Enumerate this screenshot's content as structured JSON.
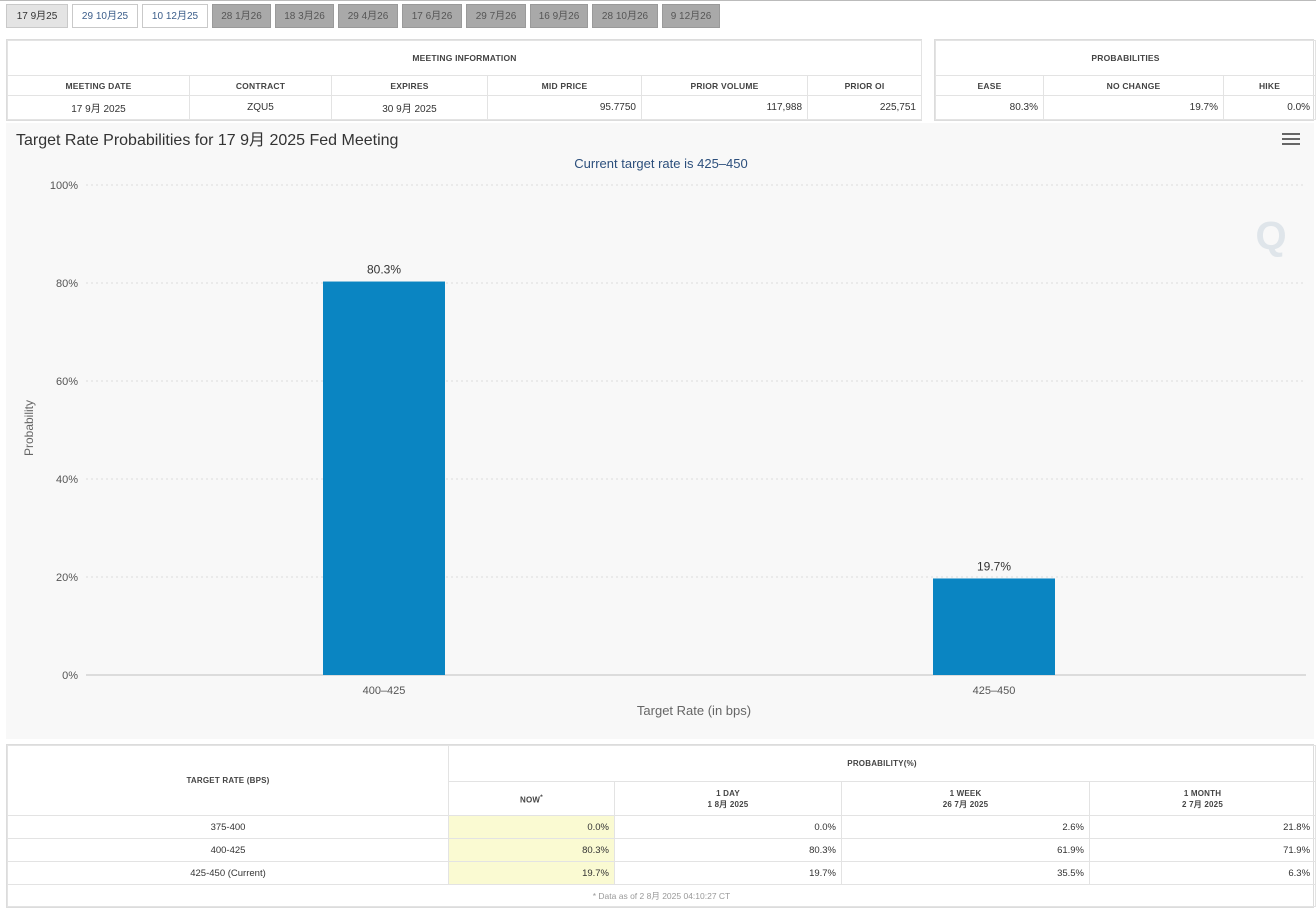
{
  "tabs": [
    {
      "label": "17 9月25",
      "state": "active"
    },
    {
      "label": "29 10月25",
      "state": "plain"
    },
    {
      "label": "10 12月25",
      "state": "plain"
    },
    {
      "label": "28 1月26",
      "state": "future"
    },
    {
      "label": "18 3月26",
      "state": "future"
    },
    {
      "label": "29 4月26",
      "state": "future"
    },
    {
      "label": "17 6月26",
      "state": "future"
    },
    {
      "label": "29 7月26",
      "state": "future"
    },
    {
      "label": "16 9月26",
      "state": "future"
    },
    {
      "label": "28 10月26",
      "state": "future"
    },
    {
      "label": "9 12月26",
      "state": "future"
    }
  ],
  "meeting_info": {
    "header": "MEETING INFORMATION",
    "columns": [
      "MEETING DATE",
      "CONTRACT",
      "EXPIRES",
      "MID PRICE",
      "PRIOR VOLUME",
      "PRIOR OI"
    ],
    "row": [
      "17 9月 2025",
      "ZQU5",
      "30 9月 2025",
      "95.7750",
      "117,988",
      "225,751"
    ]
  },
  "probabilities": {
    "header": "PROBABILITIES",
    "columns": [
      "EASE",
      "NO CHANGE",
      "HIKE"
    ],
    "row": [
      "80.3%",
      "19.7%",
      "0.0%"
    ]
  },
  "chart_data": {
    "type": "bar",
    "title": "Target Rate Probabilities for 17 9月 2025 Fed Meeting",
    "subtitle": "Current target rate is 425–450",
    "xlabel": "Target Rate (in bps)",
    "ylabel": "Probability",
    "categories": [
      "400–425",
      "425–450"
    ],
    "values": [
      80.3,
      19.7
    ],
    "data_labels": [
      "80.3%",
      "19.7%"
    ],
    "ylim": [
      0,
      100
    ],
    "yticks": [
      0,
      20,
      40,
      60,
      80,
      100
    ],
    "ytick_labels": [
      "0%",
      "20%",
      "40%",
      "60%",
      "80%",
      "100%"
    ],
    "grid": true,
    "bar_color": "#0a85c2",
    "watermark": "Q"
  },
  "rate_table": {
    "target_header": "TARGET RATE (BPS)",
    "prob_header": "PROBABILITY(%)",
    "cols": [
      {
        "line1": "NOW",
        "line2": ""
      },
      {
        "line1": "1 DAY",
        "line2": "1 8月 2025"
      },
      {
        "line1": "1 WEEK",
        "line2": "26 7月 2025"
      },
      {
        "line1": "1 MONTH",
        "line2": "2 7月 2025"
      }
    ],
    "now_marker": "*",
    "rows": [
      {
        "rate": "375-400",
        "vals": [
          "0.0%",
          "0.0%",
          "2.6%",
          "21.8%"
        ]
      },
      {
        "rate": "400-425",
        "vals": [
          "80.3%",
          "80.3%",
          "61.9%",
          "71.9%"
        ]
      },
      {
        "rate": "425-450 (Current)",
        "vals": [
          "19.7%",
          "19.7%",
          "35.5%",
          "6.3%"
        ]
      }
    ],
    "footnote": "* Data as of 2 8月 2025 04:10:27 CT"
  }
}
